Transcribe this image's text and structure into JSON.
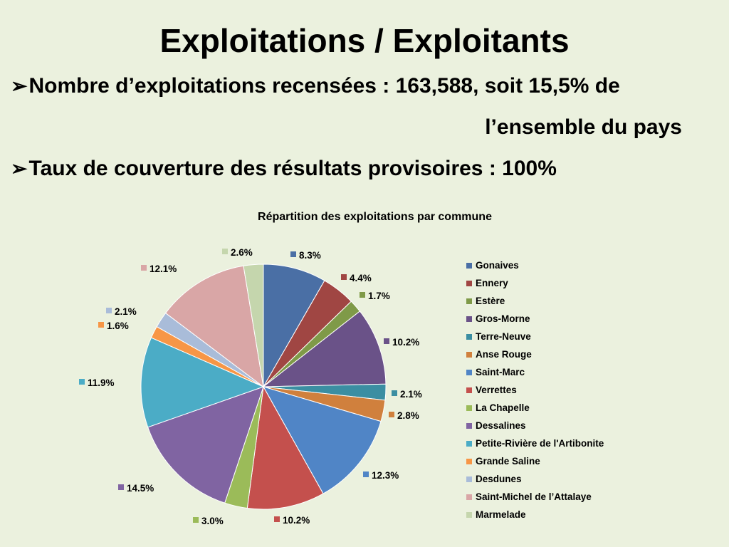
{
  "slide": {
    "title": "Exploitations / Exploitants",
    "bullet1_line1": "Nombre d’exploitations recensées :  163,588, soit 15,5% de",
    "bullet1_line2": "l’ensemble du pays",
    "bullet2": "Taux de couverture des résultats  provisoires : 100%",
    "bullet_glyph": "➢"
  },
  "chart_data": {
    "type": "pie",
    "title": "Répartition des exploitations par commune",
    "legend_position": "right",
    "start_angle_deg": 0,
    "direction": "clockwise",
    "slices": [
      {
        "label": "Gonaives",
        "value": 8.3,
        "display": "8.3%",
        "color": "#4a6fa5"
      },
      {
        "label": "Ennery",
        "value": 4.4,
        "display": "4.4%",
        "color": "#a04643"
      },
      {
        "label": "Estère",
        "value": 1.7,
        "display": "1.7%",
        "color": "#7f9a48"
      },
      {
        "label": "Gros-Morne",
        "value": 10.2,
        "display": "10.2%",
        "color": "#6a5288"
      },
      {
        "label": "Terre-Neuve",
        "value": 2.1,
        "display": "2.1%",
        "color": "#3b8ea2"
      },
      {
        "label": "Anse Rouge",
        "value": 2.8,
        "display": "2.8%",
        "color": "#d0803d"
      },
      {
        "label": "Saint-Marc",
        "value": 12.3,
        "display": "12.3%",
        "color": "#5085c6"
      },
      {
        "label": "Verrettes",
        "value": 10.2,
        "display": "10.2%",
        "color": "#c4504d"
      },
      {
        "label": "La Chapelle",
        "value": 3.0,
        "display": "3.0%",
        "color": "#9bbb59"
      },
      {
        "label": "Dessalines",
        "value": 14.5,
        "display": "14.5%",
        "color": "#8064a2"
      },
      {
        "label": "Petite-Rivière de l'Artibonite",
        "value": 11.9,
        "display": "11.9%",
        "color": "#4bacc6"
      },
      {
        "label": "Grande Saline",
        "value": 1.6,
        "display": "1.6%",
        "color": "#f79646"
      },
      {
        "label": "Desdunes",
        "value": 2.1,
        "display": "2.1%",
        "color": "#a9bcd9"
      },
      {
        "label": "Saint-Michel de l’Attalaye",
        "value": 12.1,
        "display": "12.1%",
        "color": "#d9a6a6"
      },
      {
        "label": "Marmelade",
        "value": 2.6,
        "display": "2.6%",
        "color": "#c5d6ad"
      }
    ]
  }
}
